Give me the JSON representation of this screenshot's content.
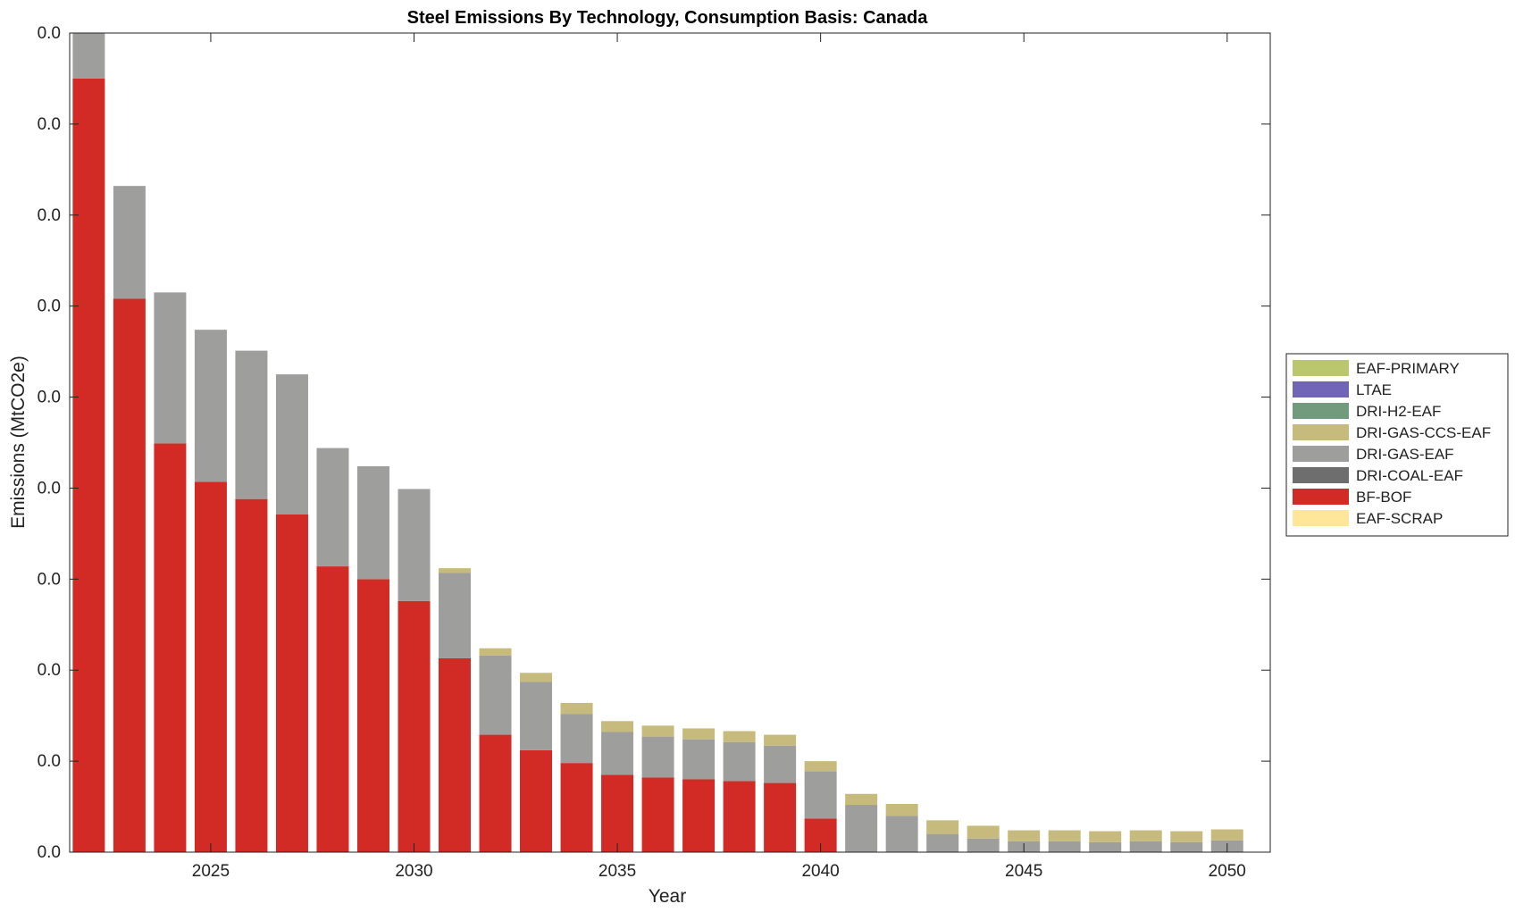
{
  "chart_data": {
    "type": "bar",
    "stacked": true,
    "title": "Steel Emissions By Technology, Consumption Basis: Canada",
    "xlabel": "Year",
    "ylabel": "Emissions (MtCO2e)",
    "x": [
      2022,
      2023,
      2024,
      2025,
      2026,
      2027,
      2028,
      2029,
      2030,
      2031,
      2032,
      2033,
      2034,
      2035,
      2036,
      2037,
      2038,
      2039,
      2040,
      2041,
      2042,
      2043,
      2044,
      2045,
      2046,
      2047,
      2048,
      2049,
      2050
    ],
    "xticks": [
      "2025",
      "2030",
      "2035",
      "2040",
      "2045",
      "2050"
    ],
    "yticks": [
      "0.0",
      "0.0",
      "0.0",
      "0.0",
      "0.0",
      "0.0",
      "0.0",
      "0.0",
      "0.0",
      "0.0"
    ],
    "ylim": [
      0,
      9
    ],
    "grid": false,
    "legend_position": "right",
    "series": [
      {
        "name": "EAF-SCRAP",
        "color": "#ffe699",
        "values": [
          0,
          0,
          0,
          0,
          0,
          0,
          0,
          0,
          0,
          0,
          0,
          0,
          0,
          0,
          0,
          0,
          0,
          0,
          0,
          0,
          0,
          0,
          0,
          0,
          0,
          0,
          0,
          0,
          0
        ]
      },
      {
        "name": "BF-BOF",
        "color": "#d22b25",
        "values": [
          8.5,
          6.08,
          4.49,
          4.07,
          3.88,
          3.71,
          3.14,
          3.0,
          2.76,
          2.13,
          1.29,
          1.12,
          0.98,
          0.85,
          0.82,
          0.8,
          0.78,
          0.76,
          0.37,
          0,
          0,
          0,
          0,
          0,
          0,
          0,
          0,
          0,
          0
        ]
      },
      {
        "name": "DRI-COAL-EAF",
        "color": "#6e6e6e",
        "values": [
          0,
          0,
          0,
          0,
          0,
          0,
          0,
          0,
          0,
          0,
          0,
          0,
          0,
          0,
          0,
          0,
          0,
          0,
          0,
          0,
          0,
          0,
          0,
          0,
          0,
          0,
          0,
          0,
          0
        ]
      },
      {
        "name": "DRI-GAS-EAF",
        "color": "#9e9e9c",
        "values": [
          0.5,
          1.24,
          1.66,
          1.67,
          1.63,
          1.54,
          1.3,
          1.24,
          1.23,
          0.94,
          0.87,
          0.75,
          0.54,
          0.47,
          0.45,
          0.44,
          0.43,
          0.41,
          0.52,
          0.52,
          0.4,
          0.2,
          0.15,
          0.12,
          0.12,
          0.11,
          0.12,
          0.11,
          0.13
        ]
      },
      {
        "name": "DRI-GAS-CCS-EAF",
        "color": "#c6ba7c",
        "values": [
          0,
          0,
          0,
          0,
          0,
          0,
          0,
          0,
          0,
          0.05,
          0.08,
          0.1,
          0.12,
          0.12,
          0.12,
          0.12,
          0.12,
          0.12,
          0.11,
          0.12,
          0.13,
          0.15,
          0.14,
          0.12,
          0.12,
          0.12,
          0.12,
          0.12,
          0.12
        ]
      },
      {
        "name": "DRI-H2-EAF",
        "color": "#729a7c",
        "values": [
          0,
          0,
          0,
          0,
          0,
          0,
          0,
          0,
          0,
          0,
          0,
          0,
          0,
          0,
          0,
          0,
          0,
          0,
          0,
          0,
          0,
          0,
          0,
          0,
          0,
          0,
          0,
          0,
          0
        ]
      },
      {
        "name": "LTAE",
        "color": "#7065b6",
        "values": [
          0,
          0,
          0,
          0,
          0,
          0,
          0,
          0,
          0,
          0,
          0,
          0,
          0,
          0,
          0,
          0,
          0,
          0,
          0,
          0,
          0,
          0,
          0,
          0,
          0,
          0,
          0,
          0,
          0
        ]
      },
      {
        "name": "EAF-PRIMARY",
        "color": "#bac76d",
        "values": [
          0,
          0,
          0,
          0,
          0,
          0,
          0,
          0,
          0,
          0,
          0,
          0,
          0,
          0,
          0,
          0,
          0,
          0,
          0,
          0,
          0,
          0,
          0,
          0,
          0,
          0,
          0,
          0,
          0
        ]
      }
    ]
  }
}
